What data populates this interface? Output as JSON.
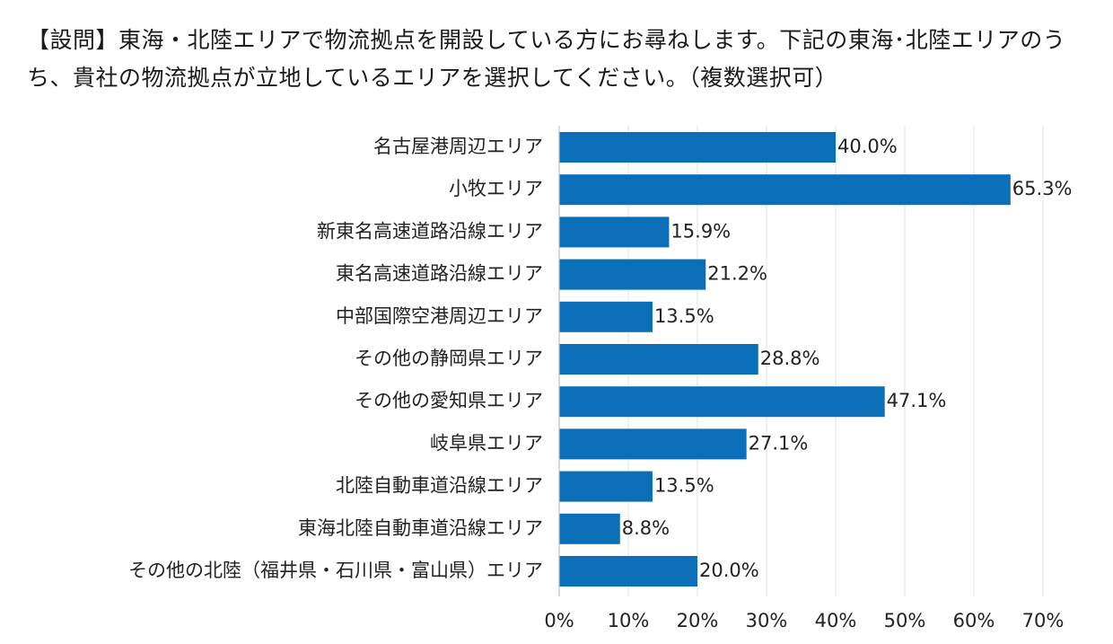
{
  "title": "【設問】東海・北陸エリアで物流拠点を開設している方にお尋ねします。下記の東海･北陸エリアのうち、貴社の物流拠点が立地しているエリアを選択してください。（複数選択可）",
  "chart_data": {
    "type": "bar",
    "orientation": "horizontal",
    "categories": [
      "名古屋港周辺エリア",
      "小牧エリア",
      "新東名高速道路沿線エリア",
      "東名高速道路沿線エリア",
      "中部国際空港周辺エリア",
      "その他の静岡県エリア",
      "その他の愛知県エリア",
      "岐阜県エリア",
      "北陸自動車道沿線エリア",
      "東海北陸自動車道沿線エリア",
      "その他の北陸（福井県・石川県・富山県）エリア"
    ],
    "values": [
      40.0,
      65.3,
      15.9,
      21.2,
      13.5,
      28.8,
      47.1,
      27.1,
      13.5,
      8.8,
      20.0
    ],
    "value_labels": [
      "40.0%",
      "65.3%",
      "15.9%",
      "21.2%",
      "13.5%",
      "28.8%",
      "47.1%",
      "27.1%",
      "13.5%",
      "8.8%",
      "20.0%"
    ],
    "xlim": [
      0,
      70
    ],
    "xticks": [
      0,
      10,
      20,
      30,
      40,
      50,
      60,
      70
    ],
    "xtick_labels": [
      "0%",
      "10%",
      "20%",
      "30%",
      "40%",
      "50%",
      "60%",
      "70%"
    ],
    "grid": true,
    "bar_color": "#0a6fb8",
    "grid_color": "#e3e3e3"
  }
}
